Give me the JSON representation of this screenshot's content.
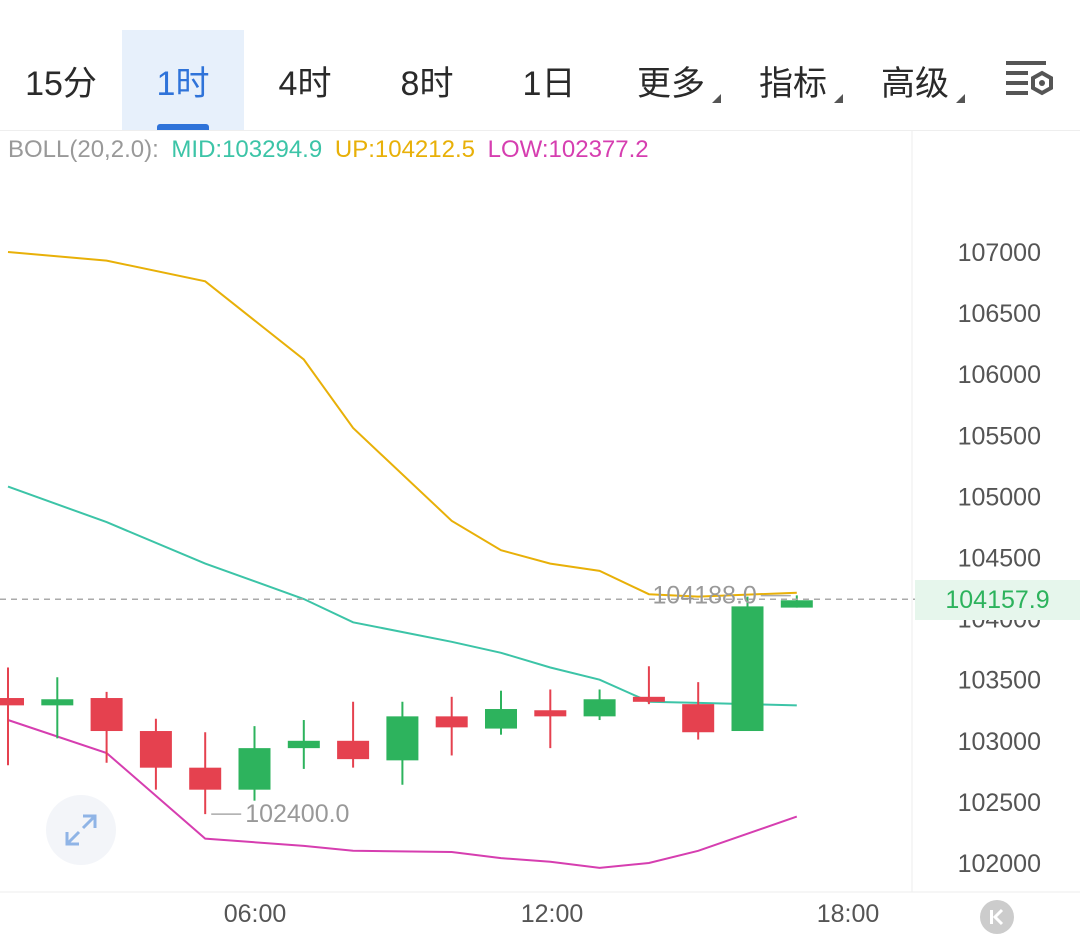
{
  "tabs": [
    {
      "label": "15分",
      "active": false,
      "dropdown": false
    },
    {
      "label": "1时",
      "active": true,
      "dropdown": false
    },
    {
      "label": "4时",
      "active": false,
      "dropdown": false
    },
    {
      "label": "8时",
      "active": false,
      "dropdown": false
    },
    {
      "label": "1日",
      "active": false,
      "dropdown": false
    },
    {
      "label": "更多",
      "active": false,
      "dropdown": true
    },
    {
      "label": "指标",
      "active": false,
      "dropdown": true
    },
    {
      "label": "高级",
      "active": false,
      "dropdown": true
    }
  ],
  "settings_icon": "chart-settings-icon",
  "legend": {
    "name": "BOLL(20,2.0):",
    "mid": "MID:103294.9",
    "up": "UP:104212.5",
    "low": "LOW:102377.2"
  },
  "colors": {
    "up_candle": "#2db35d",
    "down_candle": "#e5414f",
    "mid": "#3cc4a7",
    "upper": "#e8b008",
    "lower": "#d63eb0",
    "active_tab": "#2f73d9"
  },
  "chart_data": {
    "type": "candlestick",
    "y_ticks": [
      "107000",
      "106500",
      "106000",
      "105500",
      "105000",
      "104500",
      "104000",
      "103500",
      "103000",
      "102500",
      "102000"
    ],
    "x_ticks": [
      "06:00",
      "12:00",
      "18:00"
    ],
    "ylim": [
      101800,
      107900
    ],
    "current_price": "104157.9",
    "high_marker": "104188.0",
    "low_marker": "102400.0",
    "candles": [
      {
        "t": 0,
        "open": 103350,
        "close": 103290,
        "high": 103600,
        "low": 102800
      },
      {
        "t": 1,
        "open": 103290,
        "close": 103340,
        "high": 103520,
        "low": 103020
      },
      {
        "t": 2,
        "open": 103350,
        "close": 103080,
        "high": 103400,
        "low": 102820
      },
      {
        "t": 3,
        "open": 103080,
        "close": 102780,
        "high": 103180,
        "low": 102600
      },
      {
        "t": 4,
        "open": 102780,
        "close": 102600,
        "high": 103070,
        "low": 102400
      },
      {
        "t": 5,
        "open": 102600,
        "close": 102940,
        "high": 103120,
        "low": 102510
      },
      {
        "t": 6,
        "open": 102940,
        "close": 103000,
        "high": 103170,
        "low": 102770
      },
      {
        "t": 7,
        "open": 103000,
        "close": 102850,
        "high": 103320,
        "low": 102780
      },
      {
        "t": 8,
        "open": 102840,
        "close": 103200,
        "high": 103320,
        "low": 102640
      },
      {
        "t": 9,
        "open": 103200,
        "close": 103110,
        "high": 103360,
        "low": 102880
      },
      {
        "t": 10,
        "open": 103100,
        "close": 103260,
        "high": 103410,
        "low": 103050
      },
      {
        "t": 11,
        "open": 103250,
        "close": 103200,
        "high": 103420,
        "low": 102940
      },
      {
        "t": 12,
        "open": 103200,
        "close": 103340,
        "high": 103420,
        "low": 103170
      },
      {
        "t": 13,
        "open": 103360,
        "close": 103320,
        "high": 103610,
        "low": 103300
      },
      {
        "t": 14,
        "open": 103300,
        "close": 103070,
        "high": 103480,
        "low": 103010
      },
      {
        "t": 15,
        "open": 103080,
        "close": 104100,
        "high": 104180,
        "low": 103080
      },
      {
        "t": 16,
        "open": 104090,
        "close": 104150,
        "high": 104190,
        "low": 104090
      }
    ],
    "boll_mid": [
      105080,
      104790,
      104450,
      104160,
      103970,
      103810,
      103720,
      103600,
      103500,
      103320,
      103310,
      103290
    ],
    "boll_up": [
      107000,
      106930,
      106760,
      106120,
      105560,
      104800,
      104560,
      104450,
      104390,
      104200,
      104180,
      104212
    ],
    "boll_low": [
      103170,
      102900,
      102200,
      102140,
      102100,
      102090,
      102040,
      102010,
      101960,
      102000,
      102100,
      102380
    ],
    "boll_t": [
      0,
      2,
      4,
      6,
      7,
      9,
      10,
      11,
      12,
      13,
      14,
      16
    ]
  }
}
